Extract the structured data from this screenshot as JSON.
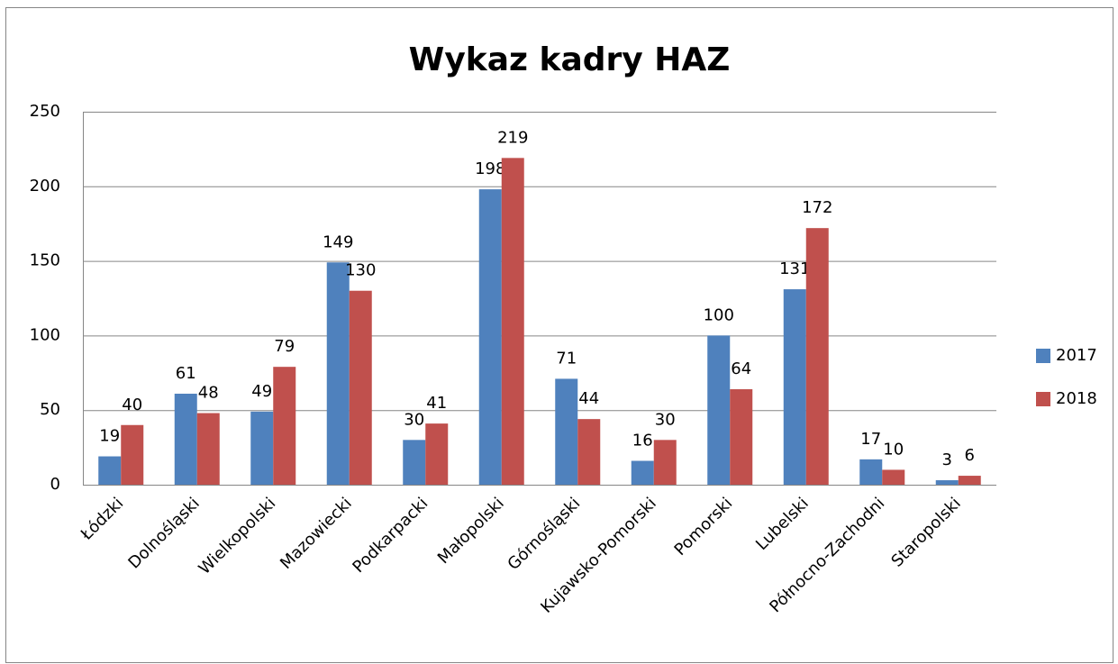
{
  "chart_data": {
    "type": "bar",
    "title": "Wykaz kadry HAZ",
    "categories": [
      "Łódzki",
      "Dolnośląski",
      "Wielkopolski",
      "Mazowiecki",
      "Podkarpacki",
      "Małopolski",
      "Górnośląski",
      "Kujawsko-Pomorski",
      "Pomorski",
      "Lubelski",
      "Północno-Zachodni",
      "Staropolski"
    ],
    "series": [
      {
        "name": "2017",
        "color": "#4f81bd",
        "values": [
          19,
          61,
          49,
          149,
          30,
          198,
          71,
          16,
          100,
          131,
          17,
          3
        ]
      },
      {
        "name": "2018",
        "color": "#c0504d",
        "values": [
          40,
          48,
          79,
          130,
          41,
          219,
          44,
          30,
          64,
          172,
          10,
          6
        ]
      }
    ],
    "ylim": [
      0,
      250
    ],
    "yticks": [
      0,
      50,
      100,
      150,
      200,
      250
    ],
    "grid": true,
    "legend": "right"
  }
}
